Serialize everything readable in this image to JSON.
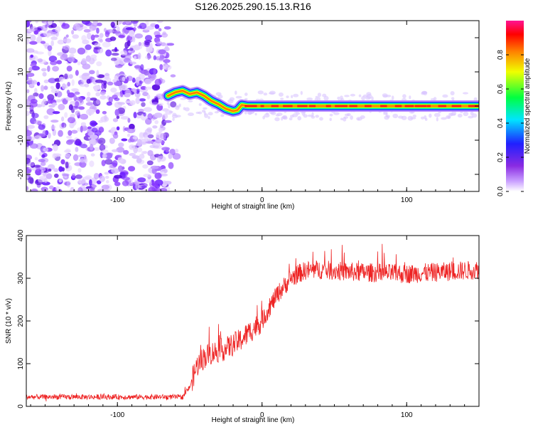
{
  "title": "S126.2025.290.15.13.R16",
  "chart_data": [
    {
      "type": "heatmap",
      "name": "spectrogram",
      "xlabel": "Height of straight line (km)",
      "ylabel": "Frequency (Hz)",
      "xlim": [
        -163,
        150
      ],
      "ylim": [
        -25,
        25
      ],
      "xticks": [
        -100,
        0,
        100
      ],
      "xtick_labels": [
        "-100",
        "0",
        "100"
      ],
      "yticks": [
        -20,
        -10,
        0,
        10,
        20
      ],
      "ytick_labels": [
        "-20",
        "-10",
        "0",
        "10",
        "20"
      ],
      "noise_region_km": [
        -163,
        -65
      ],
      "line_center_hz": [
        [
          -65,
          3
        ],
        [
          -60,
          4
        ],
        [
          -55,
          4.5
        ],
        [
          -50,
          3.5
        ],
        [
          -45,
          4
        ],
        [
          -40,
          3
        ],
        [
          -35,
          1.5
        ],
        [
          -30,
          0.5
        ],
        [
          -25,
          -0.8
        ],
        [
          -20,
          -1.5
        ],
        [
          -17,
          -1.2
        ],
        [
          -14,
          0.3
        ],
        [
          -10,
          0
        ],
        [
          0,
          0
        ],
        [
          20,
          0
        ],
        [
          40,
          0
        ],
        [
          60,
          0
        ],
        [
          80,
          0
        ],
        [
          100,
          0
        ],
        [
          120,
          0
        ],
        [
          150,
          0
        ]
      ]
    },
    {
      "type": "colorbar",
      "name": "amplitude-colorbar",
      "label": "Normalized spectral amplitude",
      "range": [
        0,
        1
      ],
      "ticks": [
        0.0,
        0.2,
        0.4,
        0.6,
        0.8
      ],
      "tick_labels": [
        "0.0",
        "0.2",
        "0.4",
        "0.6",
        "0.8"
      ],
      "colors": [
        "#ffffff",
        "#9b30ff",
        "#2020ff",
        "#00e5ff",
        "#00ff40",
        "#f0ff00",
        "#ff8000",
        "#ff0000",
        "#ff1493"
      ]
    },
    {
      "type": "line",
      "name": "snr",
      "xlabel": "Height of straight line (km)",
      "ylabel": "SNR (10 * v/v)",
      "xlim": [
        -163,
        150
      ],
      "ylim": [
        0,
        400
      ],
      "xticks": [
        -100,
        0,
        100
      ],
      "xtick_labels": [
        "-100",
        "0",
        "100"
      ],
      "yticks": [
        0,
        100,
        200,
        300,
        400
      ],
      "ytick_labels": [
        "0",
        "100",
        "200",
        "300",
        "400"
      ],
      "color": "#ee2222",
      "trend_x": [
        -163,
        -55,
        -50,
        -45,
        -40,
        -35,
        -30,
        -25,
        -20,
        -15,
        -10,
        -5,
        0,
        5,
        10,
        15,
        20,
        25,
        30,
        40,
        60,
        100,
        150
      ],
      "trend_y": [
        22,
        22,
        45,
        95,
        115,
        125,
        130,
        135,
        145,
        155,
        170,
        185,
        200,
        230,
        260,
        280,
        300,
        310,
        318,
        320,
        315,
        310,
        320
      ]
    }
  ]
}
